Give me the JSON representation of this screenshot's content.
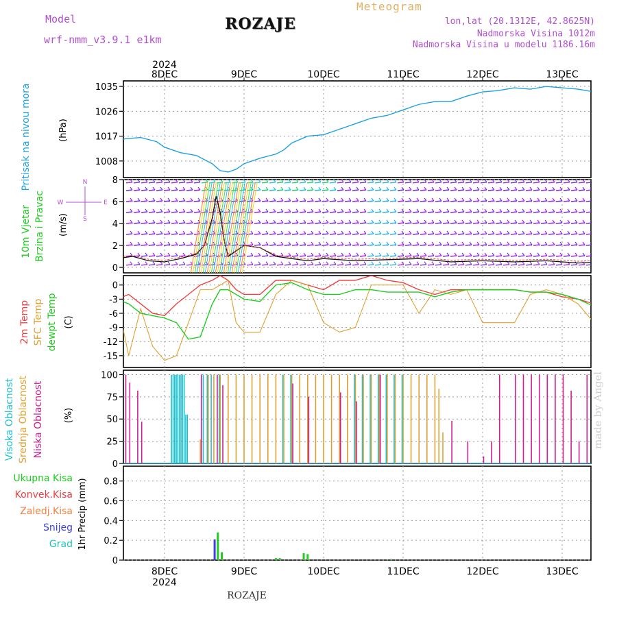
{
  "header": {
    "model_label": "Model",
    "model_name": "wrf-nmm_v3.9.1 e1km",
    "title": "ROZAJE",
    "meteogram": "Meteogram",
    "lonlat": "lon,lat (20.1312E, 42.8625N)",
    "altitude": "Nadmorska Visina 1012m",
    "model_altitude": "Nadmorska Visina u modelu 1186.16m"
  },
  "footer": {
    "station": "ROZAJE",
    "credit": "made by Angel"
  },
  "colors": {
    "pressure": "#1ea0e0",
    "temp": "#ee4040",
    "sfc_temp": "#e0a030",
    "dewpoint": "#20cc20",
    "high_cloud": "#20c0d0",
    "mid_cloud": "#e0a030",
    "low_cloud": "#cc2090",
    "total_precip": "#20cc20",
    "conv_precip": "#ee4040",
    "freezing": "#f08040",
    "snow": "#4040e0",
    "hail": "#20c0c0",
    "wind_label": "#20cc20",
    "label_purple": "#b04fd0"
  },
  "chart_data": [
    {
      "type": "line",
      "panel": "pressure",
      "ylabel": "Pritisak na nivou mora",
      "unit": "(hPa)",
      "year_top": "2024",
      "x_date_labels": [
        "8DEC",
        "9DEC",
        "10DEC",
        "11DEC",
        "12DEC",
        "13DEC"
      ],
      "yticks": [
        1008,
        1017,
        1026,
        1035
      ],
      "ylim": [
        1002,
        1037
      ],
      "x": [
        -0.6,
        -0.5,
        -0.3,
        -0.1,
        0.0,
        0.2,
        0.4,
        0.6,
        0.7,
        0.8,
        0.9,
        1.0,
        1.2,
        1.4,
        1.5,
        1.6,
        1.8,
        2.0,
        2.2,
        2.4,
        2.6,
        2.8,
        3.0,
        3.2,
        3.4,
        3.6,
        3.8,
        4.0,
        4.2,
        4.4,
        4.6,
        4.8,
        5.0,
        5.2,
        5.4,
        5.5
      ],
      "values": [
        1015.5,
        1016,
        1016.5,
        1015,
        1013,
        1011,
        1010,
        1007,
        1004.5,
        1004,
        1005,
        1007,
        1009,
        1010.5,
        1012,
        1014.5,
        1017,
        1017.5,
        1019.5,
        1021.5,
        1023.5,
        1024.5,
        1026.5,
        1028.5,
        1029.5,
        1029.5,
        1031.5,
        1033,
        1033.5,
        1034.5,
        1034,
        1035,
        1034.5,
        1034,
        1033,
        1032
      ]
    },
    {
      "type": "line",
      "panel": "wind",
      "ylabel": "10m Vjetar Brzina i Pravac",
      "unit": "(m/s)",
      "compass": [
        "N",
        "S",
        "W",
        "E"
      ],
      "yticks": [
        0,
        2,
        4,
        6,
        8
      ],
      "ylim": [
        -0.5,
        8
      ],
      "barb_rows": [
        0.2,
        1.0,
        2.0,
        3.0,
        4.0,
        5.0,
        6.0,
        7.0,
        7.7
      ],
      "x": [
        -0.6,
        -0.4,
        -0.2,
        0.0,
        0.2,
        0.4,
        0.5,
        0.6,
        0.65,
        0.7,
        0.75,
        0.8,
        0.9,
        1.0,
        1.2,
        1.4,
        1.6,
        1.8,
        2.0,
        2.4,
        2.8,
        3.2,
        3.6,
        4.0,
        4.4,
        4.8,
        5.2,
        5.5
      ],
      "values": [
        0.8,
        1.0,
        0.6,
        0.5,
        0.8,
        1.2,
        2.0,
        4.5,
        6.5,
        5.0,
        2.5,
        1.0,
        1.5,
        2.0,
        1.8,
        1.0,
        0.8,
        0.6,
        0.8,
        0.6,
        0.7,
        0.8,
        0.5,
        0.6,
        0.5,
        0.6,
        0.4,
        0.5
      ]
    },
    {
      "type": "line",
      "panel": "temperature",
      "ylabel_series": [
        "2m Temp",
        "SFC Temp",
        "dewpt Temp"
      ],
      "unit": "(C)",
      "yticks": [
        -15,
        -12,
        -9,
        -6,
        -3,
        0
      ],
      "ylim": [
        -17.5,
        2
      ],
      "x": [
        -0.6,
        -0.45,
        -0.3,
        -0.15,
        0.0,
        0.15,
        0.3,
        0.45,
        0.6,
        0.7,
        0.8,
        0.9,
        1.0,
        1.2,
        1.4,
        1.6,
        1.8,
        2.0,
        2.2,
        2.4,
        2.6,
        2.8,
        3.0,
        3.2,
        3.4,
        3.6,
        3.8,
        4.0,
        4.2,
        4.4,
        4.6,
        4.8,
        5.0,
        5.2,
        5.4,
        5.5
      ],
      "series": [
        {
          "name": "2m Temp",
          "values": [
            -3,
            -2,
            -4,
            -6,
            -6.5,
            -4,
            -2,
            0,
            1,
            2,
            1,
            -1,
            -2,
            -2,
            1,
            1,
            0,
            -1,
            1,
            1,
            2,
            1,
            0.5,
            -1,
            -2,
            -1,
            -1,
            -1,
            -1,
            -1,
            -1.5,
            -1.5,
            -2.5,
            -3,
            -4,
            -1
          ]
        },
        {
          "name": "SFC Temp",
          "values": [
            -3,
            -15,
            -5,
            -13,
            -16,
            -15,
            -8,
            -1,
            -1,
            0,
            1,
            -8,
            -10,
            -10,
            -2,
            1,
            0,
            -8,
            -10,
            -9,
            0,
            0,
            0,
            -6,
            -1,
            -2,
            -1,
            -8,
            -8,
            -8,
            -2,
            -1,
            -2,
            -4,
            -8,
            1
          ]
        },
        {
          "name": "dewpt Temp",
          "values": [
            -3,
            -4,
            -6,
            -6.5,
            -7,
            -8,
            -11.5,
            -11,
            -4,
            -1,
            -1,
            -2,
            -3,
            -3.5,
            0,
            0.5,
            -1,
            -2,
            -2,
            -1,
            -1,
            -1.5,
            -1.5,
            -1.5,
            -2.5,
            -1.5,
            -1,
            -1,
            -1,
            -1,
            -1.5,
            -1.5,
            -2,
            -3,
            -4.5,
            -1
          ]
        }
      ]
    },
    {
      "type": "bar",
      "panel": "cloud",
      "ylabel_series": [
        "Visoka Oblacnost",
        "Srednja Oblacnost",
        "Niska Oblacnost"
      ],
      "unit": "(%)",
      "yticks": [
        0,
        25,
        50,
        75,
        100
      ],
      "ylim": [
        0,
        105
      ],
      "series": [
        {
          "name": "Visoka Oblacnost",
          "x": [
            0.1,
            0.12,
            0.14,
            0.16,
            0.18,
            0.2,
            0.22,
            0.24,
            0.26,
            0.28,
            0.3,
            0.5,
            0.55,
            0.6,
            0.7,
            1.5,
            1.6,
            2.4,
            2.5,
            2.6,
            2.7,
            2.8,
            2.9,
            3.0
          ],
          "values": [
            100,
            100,
            100,
            100,
            100,
            100,
            100,
            100,
            100,
            55,
            55,
            100,
            100,
            100,
            100,
            100,
            100,
            100,
            100,
            100,
            100,
            100,
            100,
            100
          ]
        },
        {
          "name": "Srednja Oblacnost",
          "x": [
            0.45,
            0.55,
            0.62,
            0.7,
            0.8,
            0.9,
            1.0,
            1.1,
            1.2,
            1.3,
            1.4,
            1.5,
            1.6,
            1.7,
            1.8,
            1.9,
            2.0,
            2.1,
            2.2,
            2.3,
            2.4,
            2.5,
            2.6,
            2.7,
            2.8,
            2.9,
            3.0,
            3.1,
            3.2,
            3.3,
            3.4,
            3.45,
            3.5,
            5.45,
            5.5
          ],
          "values": [
            27,
            100,
            100,
            100,
            100,
            100,
            100,
            100,
            100,
            100,
            100,
            100,
            100,
            100,
            100,
            100,
            100,
            100,
            100,
            100,
            100,
            100,
            100,
            100,
            100,
            100,
            100,
            100,
            100,
            100,
            100,
            84,
            35,
            95,
            45
          ]
        },
        {
          "name": "Niska Oblacnost",
          "x": [
            -0.6,
            -0.5,
            -0.45,
            -0.35,
            -0.3,
            0.45,
            0.65,
            0.72,
            1.6,
            1.8,
            2.2,
            2.4,
            2.7,
            3.6,
            3.8,
            4.0,
            4.1,
            4.2,
            4.4,
            4.5,
            4.6,
            4.7,
            4.8,
            4.9,
            5.0,
            5.1,
            5.2,
            5.3
          ],
          "values": [
            77,
            100,
            91,
            82,
            47,
            100,
            100,
            88,
            90,
            75,
            80,
            70,
            100,
            48,
            25,
            8,
            25,
            100,
            100,
            100,
            100,
            100,
            100,
            100,
            100,
            82,
            25,
            100
          ]
        }
      ]
    },
    {
      "type": "bar",
      "panel": "precip",
      "ylabel_series": [
        "Ukupna Kisa",
        "Konvek.Kisa",
        "Zaledj.Kisa",
        "Snijeg",
        "Grad"
      ],
      "ylabel": "1hr Precip (mm)",
      "year_bottom": "2024",
      "yticks": [
        0,
        0.2,
        0.4,
        0.6,
        0.8
      ],
      "ylim": [
        0,
        0.95
      ],
      "series": [
        {
          "name": "Ukupna Kisa",
          "x": [
            0.67,
            0.72,
            1.4,
            1.45,
            1.75,
            1.8,
            2.85
          ],
          "values": [
            0.28,
            0.08,
            0.02,
            0.02,
            0.07,
            0.06,
            0.01
          ]
        },
        {
          "name": "Snijeg",
          "x": [
            0.63
          ],
          "values": [
            0.21
          ]
        }
      ]
    }
  ]
}
